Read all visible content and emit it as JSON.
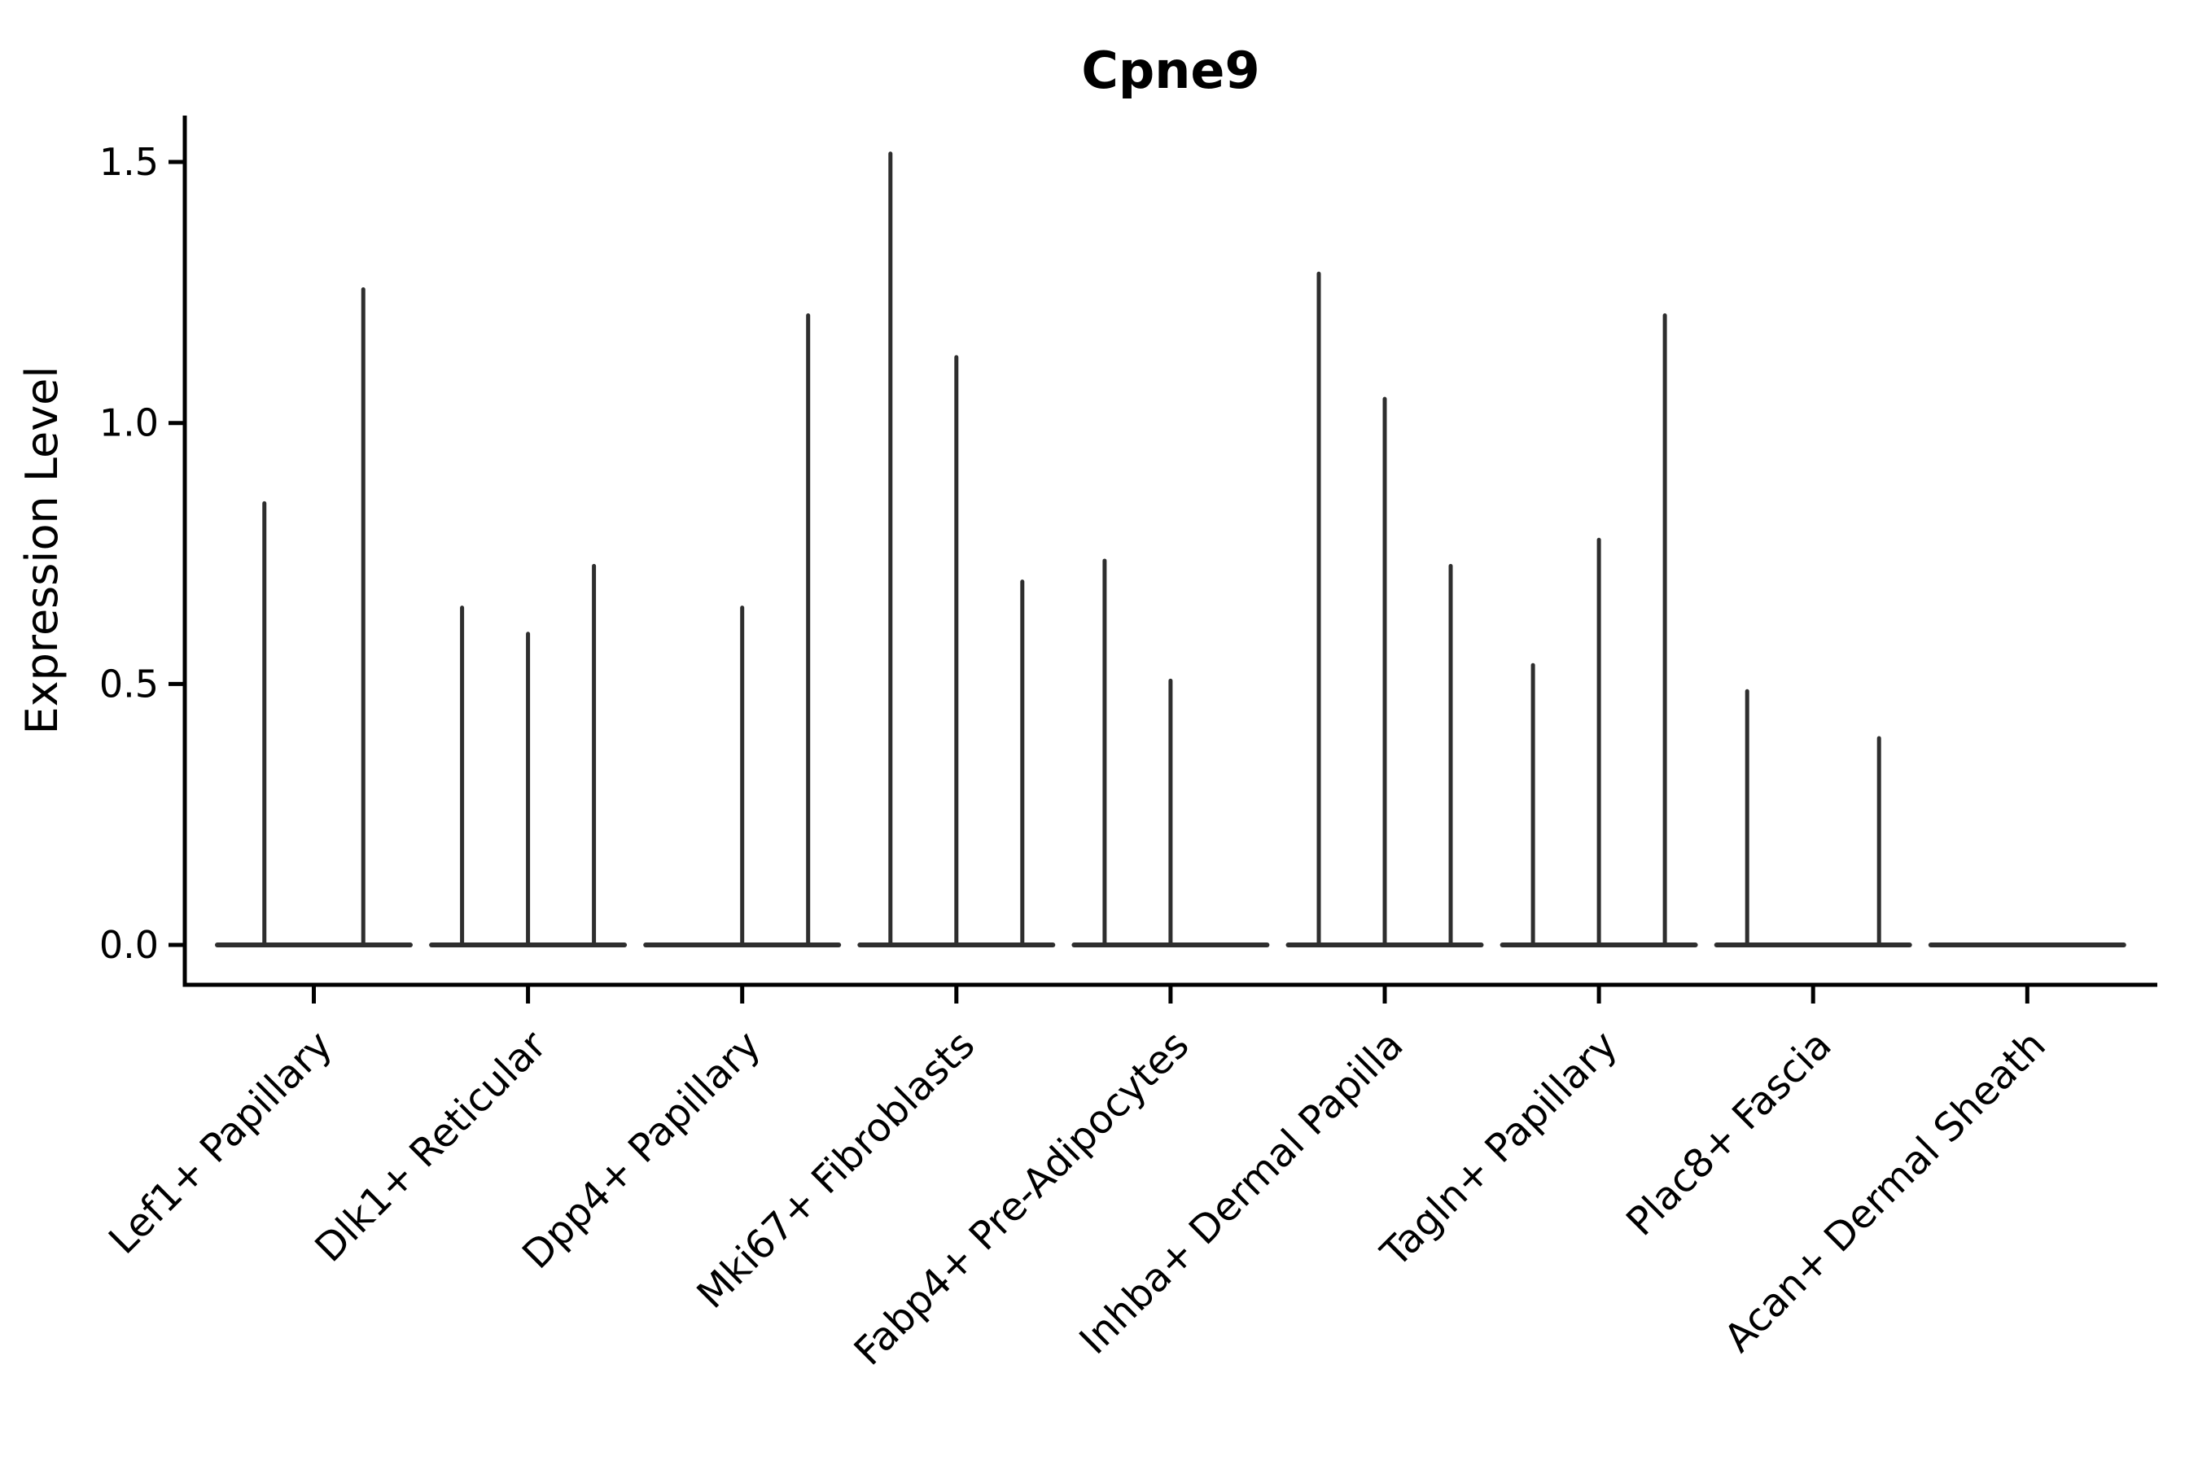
{
  "chart_data": {
    "type": "violin",
    "title": "Cpne9",
    "ylabel": "Expression Level",
    "xlabel": "",
    "background": "#ffffff",
    "axis_color": "#000000",
    "violin_color": "#2e2e2e",
    "grid": false,
    "legend": "none",
    "ylim": [
      -0.08,
      1.59
    ],
    "x_tick_rotation_deg": 45,
    "yticks": [
      {
        "label": "0.0",
        "value": 0.0
      },
      {
        "label": "0.5",
        "value": 0.5
      },
      {
        "label": "1.0",
        "value": 1.0
      },
      {
        "label": "1.5",
        "value": 1.5
      }
    ],
    "groups": [
      {
        "label": "Lef1+ Papillary",
        "violin_max_values": [
          0.85,
          1.26
        ]
      },
      {
        "label": "Dlk1+ Reticular",
        "violin_max_values": [
          0.65,
          0.6,
          0.73
        ]
      },
      {
        "label": "Dpp4+ Papillary",
        "violin_max_values": [
          0.0,
          0.65,
          1.21
        ]
      },
      {
        "label": "Mki67+ Fibroblasts",
        "violin_max_values": [
          1.52,
          1.13,
          0.7
        ]
      },
      {
        "label": "Fabp4+ Pre-Adipocytes",
        "violin_max_values": [
          0.74,
          0.51,
          0.0
        ]
      },
      {
        "label": "Inhba+ Dermal Papilla",
        "violin_max_values": [
          1.29,
          1.05,
          0.73
        ]
      },
      {
        "label": "Tagln+ Papillary",
        "violin_max_values": [
          0.54,
          0.78,
          1.21
        ]
      },
      {
        "label": "Plac8+ Fascia",
        "violin_max_values": [
          0.49,
          0.0,
          0.4
        ]
      },
      {
        "label": "Acan+ Dermal Sheath",
        "violin_max_values": [
          0.0,
          0.0,
          0.0
        ]
      }
    ]
  }
}
